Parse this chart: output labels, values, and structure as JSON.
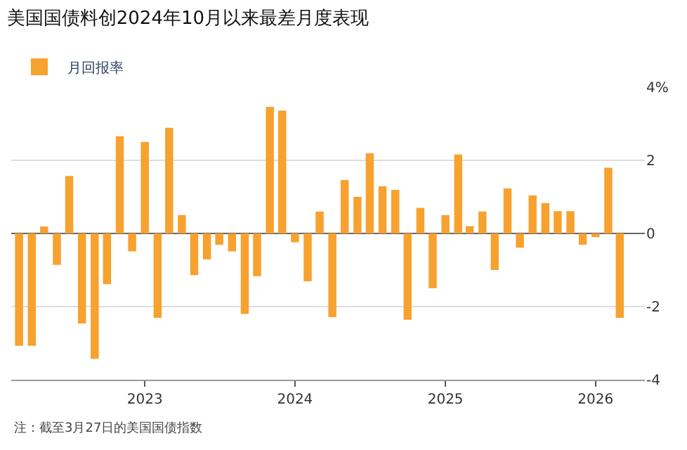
{
  "chart_data": {
    "type": "bar",
    "title": "美国国债料创2024年10月以来最差月度表现",
    "x": [
      "2022-03",
      "2022-04",
      "2022-05",
      "2022-06",
      "2022-07",
      "2022-08",
      "2022-09",
      "2022-10",
      "2022-11",
      "2022-12",
      "2023-01",
      "2023-02",
      "2023-03",
      "2023-04",
      "2023-05",
      "2023-06",
      "2023-07",
      "2023-08",
      "2023-09",
      "2023-10",
      "2023-11",
      "2023-12",
      "2024-01",
      "2024-02",
      "2024-03",
      "2024-04",
      "2024-05",
      "2024-06",
      "2024-07",
      "2024-08",
      "2024-09",
      "2024-10",
      "2024-11",
      "2024-12",
      "2025-01",
      "2025-02",
      "2025-03",
      "2025-04",
      "2025-05",
      "2025-06",
      "2025-07",
      "2025-08",
      "2025-09",
      "2025-10",
      "2025-11",
      "2025-12",
      "2026-01",
      "2026-02",
      "2026-03"
    ],
    "series": [
      {
        "name": "月回报率",
        "color": "#f7a12f",
        "values": [
          -3.07,
          -3.07,
          0.19,
          -0.86,
          1.57,
          -2.46,
          -3.43,
          -1.39,
          2.66,
          -0.49,
          2.5,
          -2.31,
          2.89,
          0.5,
          -1.14,
          -0.71,
          -0.31,
          -0.49,
          -2.2,
          -1.17,
          3.46,
          3.36,
          -0.24,
          -1.31,
          0.6,
          -2.29,
          1.46,
          1.0,
          2.19,
          1.29,
          1.19,
          -2.36,
          0.7,
          -1.5,
          0.5,
          2.16,
          0.2,
          0.6,
          -1.0,
          1.23,
          -0.39,
          1.04,
          0.83,
          0.61,
          0.61,
          -0.31,
          -0.1,
          1.8,
          -2.31
        ]
      }
    ],
    "xlim": [
      "2022-02-10",
      "2026-05-01"
    ],
    "xticks": [
      {
        "value": "2023-01-01",
        "label": "2023"
      },
      {
        "value": "2024-01-01",
        "label": "2024"
      },
      {
        "value": "2025-01-01",
        "label": "2025"
      },
      {
        "value": "2026-01-01",
        "label": "2026"
      }
    ],
    "ylim": [
      -4,
      4
    ],
    "yticks": [
      -4,
      -2,
      0,
      2,
      {
        "value": 4,
        "label": "4%"
      }
    ],
    "grid": "y",
    "legend": "top left",
    "annotations": [
      "注：截至3月27日的美国国债指数"
    ]
  }
}
